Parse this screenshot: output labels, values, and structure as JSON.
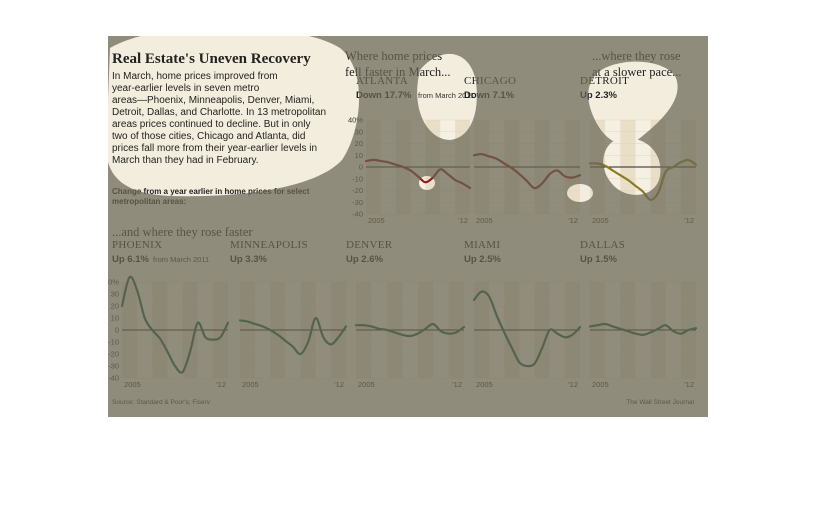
{
  "header": {
    "title": "Real Estate's Uneven Recovery",
    "intro_lines": [
      "In March, home prices improved from",
      "year-earlier levels in seven metro",
      "areas—Phoenix, Minneapolis, Denver, Miami,",
      "Detroit, Dallas, and Charlotte. In 13 metropolitan",
      "areas prices continued to decline. But in only",
      "two of those cities, Chicago and Atlanta, did",
      "prices fall more from their year-earlier levels in",
      "March than they had in February."
    ],
    "subtitle_lines": [
      "Change from a year earlier in home prices for select",
      "metropolitan areas:"
    ]
  },
  "sections": {
    "faster_line1": "Where home prices",
    "faster_line2": "fell faster in March...",
    "slower_line1": "...where they rose",
    "slower_line2": "at a slower pace...",
    "rose_faster": "...and where they rose faster"
  },
  "from_note": "from March 2011",
  "source": "Source: Standard & Poor's; Fiserv",
  "credit": "The Wall Street Journal",
  "colors": {
    "decline": "#8c1c1c",
    "slower": "#8c7a22",
    "rise": "#1f5c3a",
    "zero": "#222222",
    "grid": "#e0d6c0",
    "year_band": "#e9dfc8"
  },
  "chart_data": [
    {
      "type": "line",
      "city": "ATLANTA",
      "change": "Down 17.7%",
      "x_labels": [
        "2005",
        "'12"
      ],
      "yticks": [
        "40%",
        "30",
        "20",
        "10",
        "0",
        "-10",
        "-20",
        "-30",
        "-40"
      ],
      "ylim": [
        -40,
        40
      ],
      "x": [
        2005,
        2005.5,
        2006,
        2006.5,
        2007,
        2007.5,
        2008,
        2008.5,
        2009,
        2009.5,
        2010,
        2010.5,
        2011,
        2011.5,
        2012
      ],
      "values": [
        5,
        6,
        5,
        4,
        2,
        0,
        -3,
        -8,
        -13,
        -9,
        -2,
        -6,
        -11,
        -14,
        -18
      ]
    },
    {
      "type": "line",
      "city": "CHICAGO",
      "change": "Down 7.1%",
      "x_labels": [
        "2005",
        "'12"
      ],
      "ylim": [
        -40,
        40
      ],
      "x": [
        2005,
        2005.5,
        2006,
        2006.5,
        2007,
        2007.5,
        2008,
        2008.5,
        2009,
        2009.5,
        2010,
        2010.5,
        2011,
        2011.5,
        2012
      ],
      "values": [
        10,
        11,
        9,
        7,
        3,
        -1,
        -6,
        -12,
        -18,
        -14,
        -6,
        -3,
        -8,
        -9,
        -7
      ]
    },
    {
      "type": "line",
      "city": "DETROIT",
      "change": "Up 2.3%",
      "x_labels": [
        "2005",
        "'12"
      ],
      "ylim": [
        -40,
        40
      ],
      "x": [
        2005,
        2005.5,
        2006,
        2006.5,
        2007,
        2007.5,
        2008,
        2008.5,
        2009,
        2009.5,
        2010,
        2010.5,
        2011,
        2011.5,
        2012
      ],
      "values": [
        3,
        3,
        1,
        -3,
        -7,
        -11,
        -16,
        -21,
        -28,
        -22,
        -4,
        0,
        4,
        6,
        2
      ]
    },
    {
      "type": "line",
      "city": "PHOENIX",
      "change": "Up 6.1%",
      "x_labels": [
        "2005",
        "'12"
      ],
      "yticks": [
        "40%",
        "30",
        "20",
        "10",
        "0",
        "-10",
        "-20",
        "-30",
        "-40"
      ],
      "ylim": [
        -40,
        40
      ],
      "x": [
        2005,
        2005.5,
        2006,
        2006.5,
        2007,
        2007.5,
        2008,
        2008.5,
        2009,
        2009.5,
        2010,
        2010.5,
        2011,
        2011.5,
        2012
      ],
      "values": [
        20,
        44,
        33,
        10,
        0,
        -7,
        -18,
        -30,
        -35,
        -18,
        6,
        -6,
        -8,
        -6,
        6
      ]
    },
    {
      "type": "line",
      "city": "MINNEAPOLIS",
      "change": "Up 3.3%",
      "x_labels": [
        "2005",
        "'12"
      ],
      "ylim": [
        -40,
        40
      ],
      "x": [
        2005,
        2005.5,
        2006,
        2006.5,
        2007,
        2007.5,
        2008,
        2008.5,
        2009,
        2009.5,
        2010,
        2010.5,
        2011,
        2011.5,
        2012
      ],
      "values": [
        8,
        7,
        5,
        3,
        0,
        -4,
        -9,
        -14,
        -20,
        -10,
        10,
        -6,
        -12,
        -6,
        3
      ]
    },
    {
      "type": "line",
      "city": "DENVER",
      "change": "Up 2.6%",
      "x_labels": [
        "2005",
        "'12"
      ],
      "ylim": [
        -40,
        40
      ],
      "x": [
        2005,
        2005.5,
        2006,
        2006.5,
        2007,
        2007.5,
        2008,
        2008.5,
        2009,
        2009.5,
        2010,
        2010.5,
        2011,
        2011.5,
        2012
      ],
      "values": [
        4,
        4,
        3,
        1,
        0,
        -2,
        -4,
        -5,
        -3,
        1,
        5,
        -1,
        -3,
        -2,
        2.6
      ]
    },
    {
      "type": "line",
      "city": "MIAMI",
      "change": "Up 2.5%",
      "x_labels": [
        "2005",
        "'12"
      ],
      "ylim": [
        -40,
        40
      ],
      "x": [
        2005,
        2005.5,
        2006,
        2006.5,
        2007,
        2007.5,
        2008,
        2008.5,
        2009,
        2009.5,
        2010,
        2010.5,
        2011,
        2011.5,
        2012
      ],
      "values": [
        25,
        32,
        28,
        12,
        -2,
        -15,
        -27,
        -30,
        -28,
        -15,
        0,
        -3,
        -6,
        -4,
        2.5
      ]
    },
    {
      "type": "line",
      "city": "DALLAS",
      "change": "Up 1.5%",
      "x_labels": [
        "2005",
        "'12"
      ],
      "ylim": [
        -40,
        40
      ],
      "x": [
        2005,
        2005.5,
        2006,
        2006.5,
        2007,
        2007.5,
        2008,
        2008.5,
        2009,
        2009.5,
        2010,
        2010.5,
        2011,
        2011.5,
        2012
      ],
      "values": [
        3,
        4,
        5,
        3,
        1,
        -1,
        -3,
        -4,
        -2,
        1,
        4,
        -1,
        -3,
        0,
        1.5
      ]
    }
  ]
}
